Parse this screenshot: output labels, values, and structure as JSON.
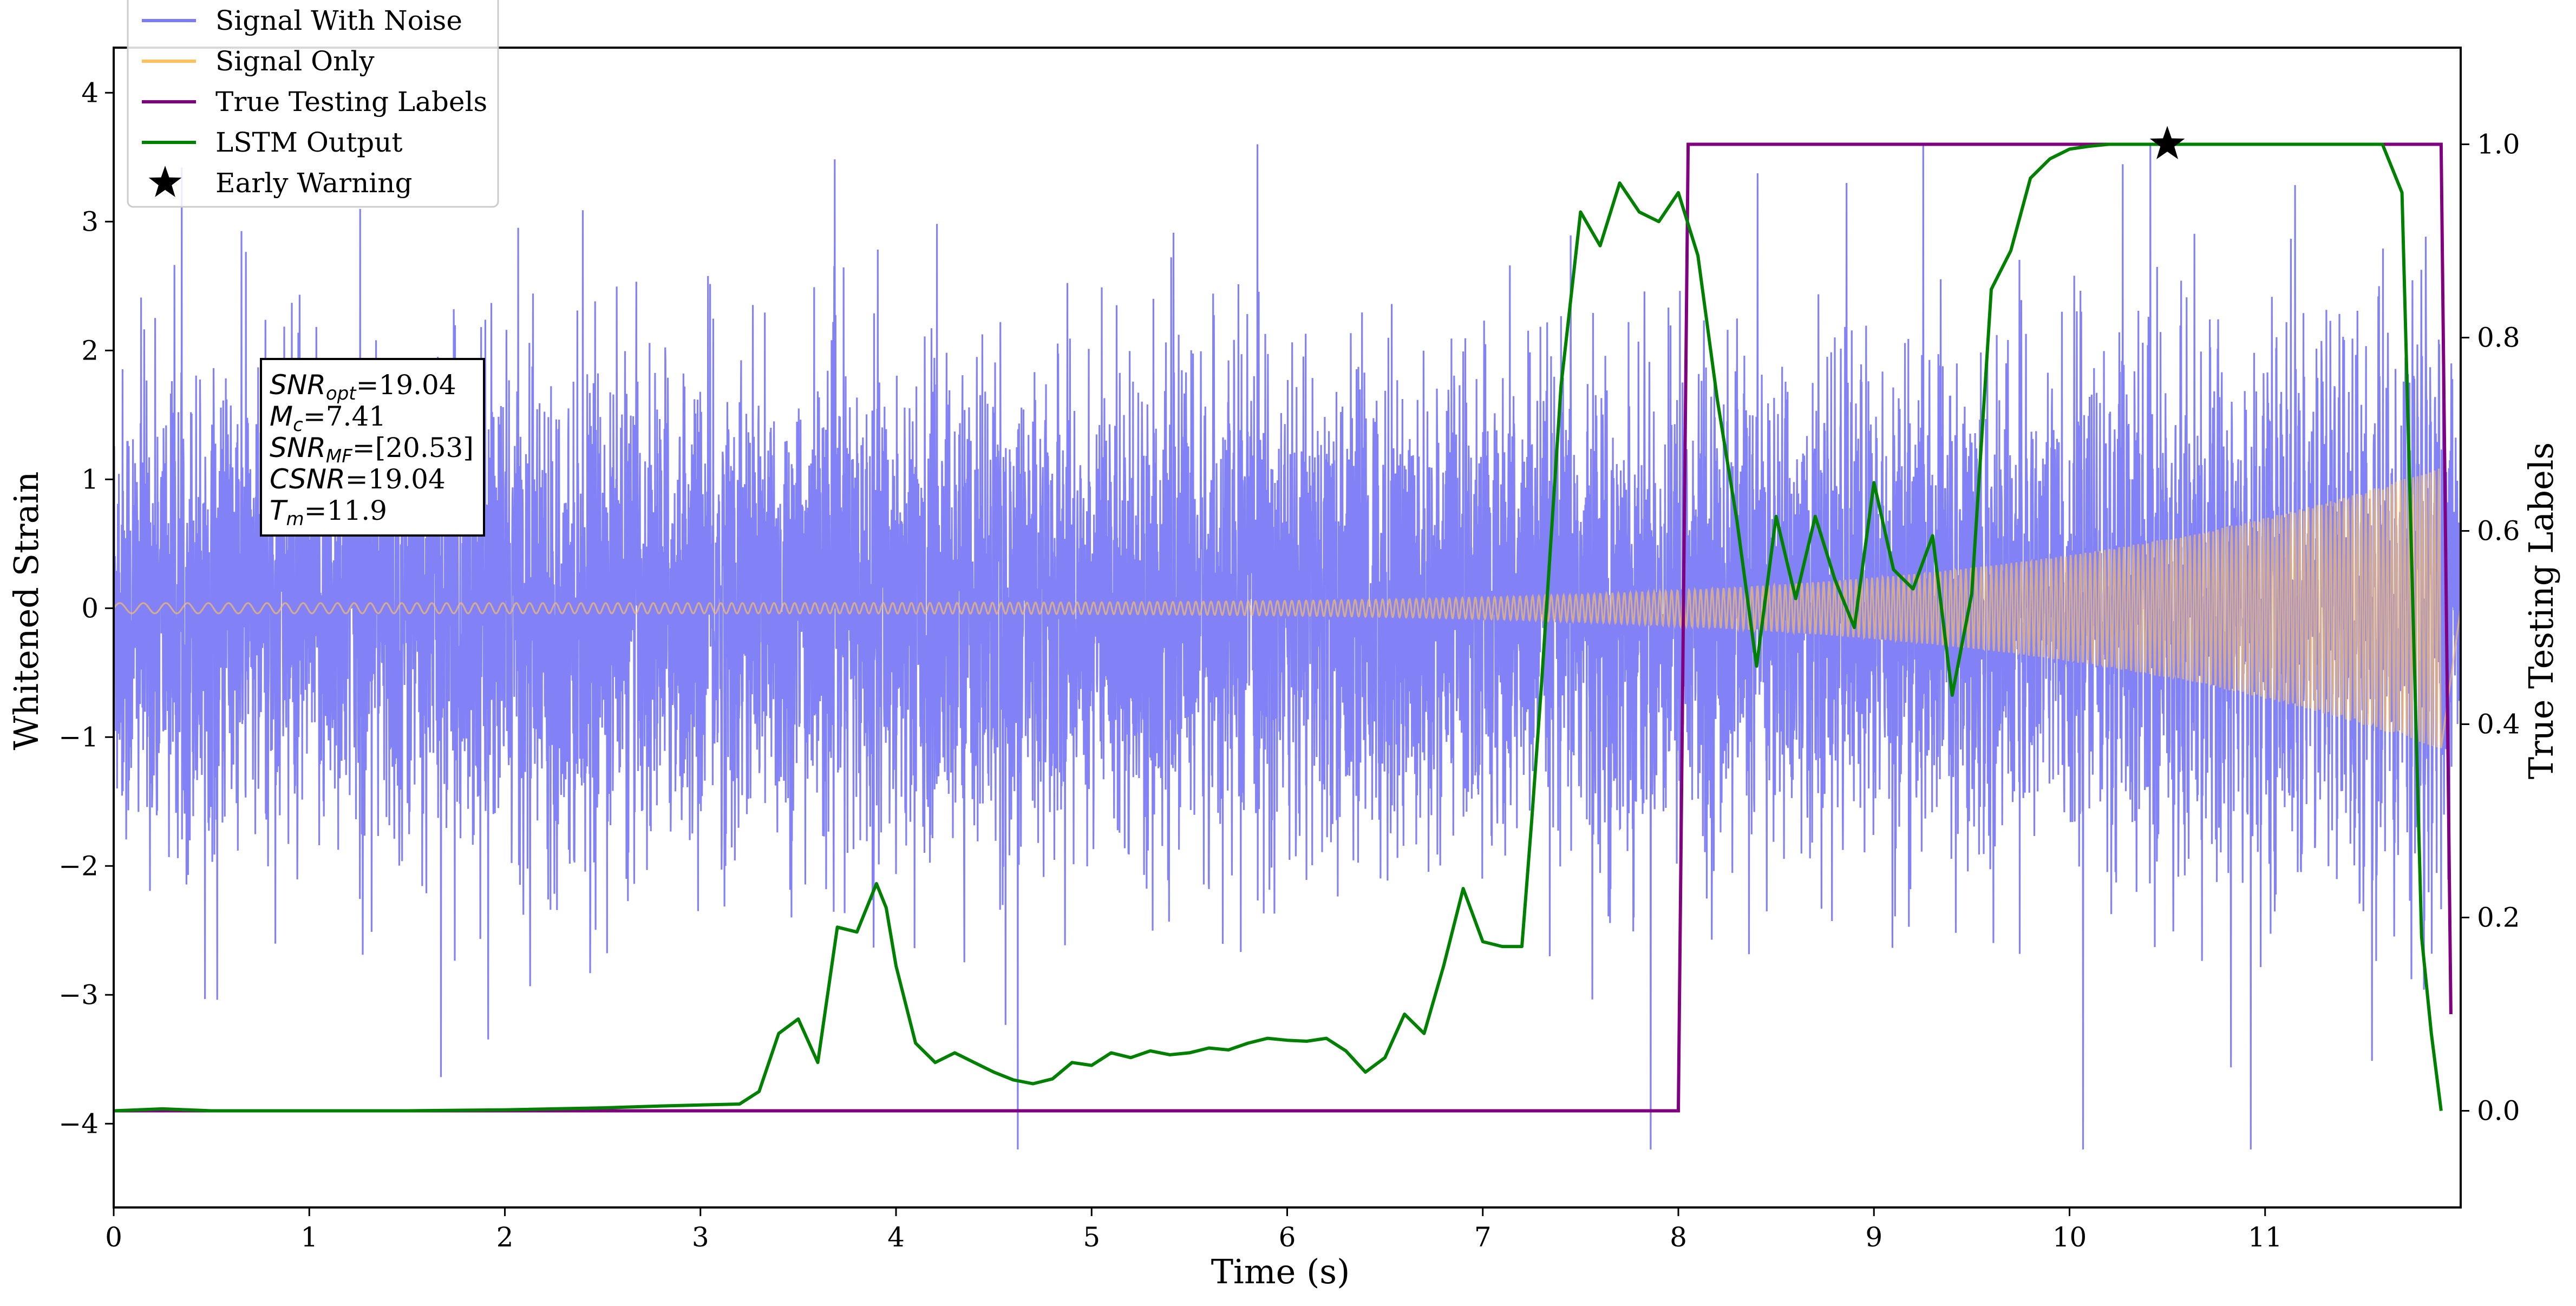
{
  "chart_data": {
    "type": "line",
    "title": "",
    "xlabel": "Time (s)",
    "ylabel": "Whitened Strain",
    "y2label": "True Testing Labels",
    "xlim": [
      0,
      12.0
    ],
    "ylim": [
      -4.65,
      4.35
    ],
    "y2lim": [
      -0.1,
      1.1
    ],
    "x_ticks": [
      0,
      1,
      2,
      3,
      4,
      5,
      6,
      7,
      8,
      9,
      10,
      11
    ],
    "y_ticks": [
      -4,
      -3,
      -2,
      -1,
      0,
      1,
      2,
      3,
      4
    ],
    "y_tick_labels": [
      "−4",
      "−3",
      "−2",
      "−1",
      "0",
      "1",
      "2",
      "3",
      "4"
    ],
    "y2_ticks": [
      0.0,
      0.2,
      0.4,
      0.6,
      0.8,
      1.0
    ],
    "y2_tick_labels": [
      "0.0",
      "0.2",
      "0.4",
      "0.6",
      "0.8",
      "1.0"
    ],
    "grid": false,
    "legend_position": "top-left",
    "legend": [
      {
        "name": "Signal With Noise",
        "color": "#7b7bf5",
        "marker": "line"
      },
      {
        "name": "Signal Only",
        "color": "#ffc060",
        "marker": "line"
      },
      {
        "name": "True Testing Labels",
        "color": "#800080",
        "marker": "line"
      },
      {
        "name": "LSTM Output",
        "color": "#008000",
        "marker": "line"
      },
      {
        "name": "Early Warning",
        "color": "#000000",
        "marker": "star"
      }
    ],
    "info_box": [
      {
        "sym": "SNR",
        "sub": "opt",
        "value": "=19.04"
      },
      {
        "sym": "M",
        "sub": "c",
        "value": "=7.41"
      },
      {
        "sym": "SNR",
        "sub": "MF",
        "value": "=[20.53]"
      },
      {
        "sym": "CSNR",
        "sub": "",
        "value": "=19.04"
      },
      {
        "sym": "T",
        "sub": "m",
        "value": "=11.9"
      }
    ],
    "series": [
      {
        "name": "Signal With Noise",
        "axis": "left",
        "color": "#7b7bf5",
        "description_noise_sigma": 0.9,
        "range": [
          -4.2,
          3.6
        ]
      },
      {
        "name": "Signal Only",
        "axis": "left",
        "color": "#ffc060",
        "amplitude_start": 0.04,
        "amplitude_end": 1.1,
        "x_end": 11.9
      },
      {
        "name": "True Testing Labels",
        "axis": "right",
        "color": "#800080",
        "x": [
          0,
          8.0,
          8.05,
          11.9,
          11.95
        ],
        "y": [
          0,
          0,
          1,
          1,
          0.1
        ]
      },
      {
        "name": "LSTM Output",
        "axis": "right",
        "color": "#008000",
        "x": [
          0,
          0.25,
          0.5,
          1.0,
          1.5,
          2.0,
          2.5,
          2.8,
          3.0,
          3.2,
          3.3,
          3.4,
          3.5,
          3.6,
          3.7,
          3.8,
          3.9,
          3.95,
          4.0,
          4.1,
          4.2,
          4.3,
          4.4,
          4.5,
          4.6,
          4.7,
          4.8,
          4.9,
          5.0,
          5.1,
          5.2,
          5.3,
          5.4,
          5.5,
          5.6,
          5.7,
          5.8,
          5.9,
          6.0,
          6.1,
          6.2,
          6.3,
          6.4,
          6.5,
          6.6,
          6.7,
          6.8,
          6.9,
          7.0,
          7.1,
          7.2,
          7.25,
          7.3,
          7.4,
          7.5,
          7.6,
          7.7,
          7.8,
          7.9,
          8.0,
          8.1,
          8.2,
          8.3,
          8.4,
          8.5,
          8.6,
          8.7,
          8.8,
          8.9,
          9.0,
          9.1,
          9.2,
          9.3,
          9.4,
          9.5,
          9.6,
          9.7,
          9.8,
          9.9,
          10.0,
          10.1,
          10.2,
          10.3,
          10.4,
          10.5,
          10.6,
          10.8,
          11.0,
          11.2,
          11.4,
          11.6,
          11.7,
          11.8,
          11.85,
          11.9
        ],
        "y": [
          0.0,
          0.002,
          0.0,
          0.0,
          0.0,
          0.001,
          0.003,
          0.005,
          0.006,
          0.007,
          0.02,
          0.08,
          0.095,
          0.05,
          0.19,
          0.185,
          0.235,
          0.21,
          0.15,
          0.07,
          0.05,
          0.06,
          0.05,
          0.04,
          0.032,
          0.028,
          0.033,
          0.05,
          0.047,
          0.06,
          0.055,
          0.062,
          0.058,
          0.06,
          0.065,
          0.063,
          0.07,
          0.075,
          0.073,
          0.072,
          0.075,
          0.062,
          0.04,
          0.055,
          0.1,
          0.08,
          0.15,
          0.23,
          0.175,
          0.17,
          0.17,
          0.3,
          0.44,
          0.75,
          0.93,
          0.895,
          0.96,
          0.93,
          0.92,
          0.95,
          0.885,
          0.735,
          0.61,
          0.46,
          0.615,
          0.53,
          0.615,
          0.55,
          0.5,
          0.65,
          0.56,
          0.54,
          0.595,
          0.43,
          0.535,
          0.85,
          0.89,
          0.965,
          0.985,
          0.995,
          0.998,
          1.0,
          1.0,
          1.0,
          1.0,
          1.0,
          1.0,
          1.0,
          1.0,
          1.0,
          1.0,
          0.95,
          0.18,
          0.08,
          0.0
        ]
      }
    ],
    "early_warning": {
      "x": 10.5,
      "y": 1.0
    }
  }
}
